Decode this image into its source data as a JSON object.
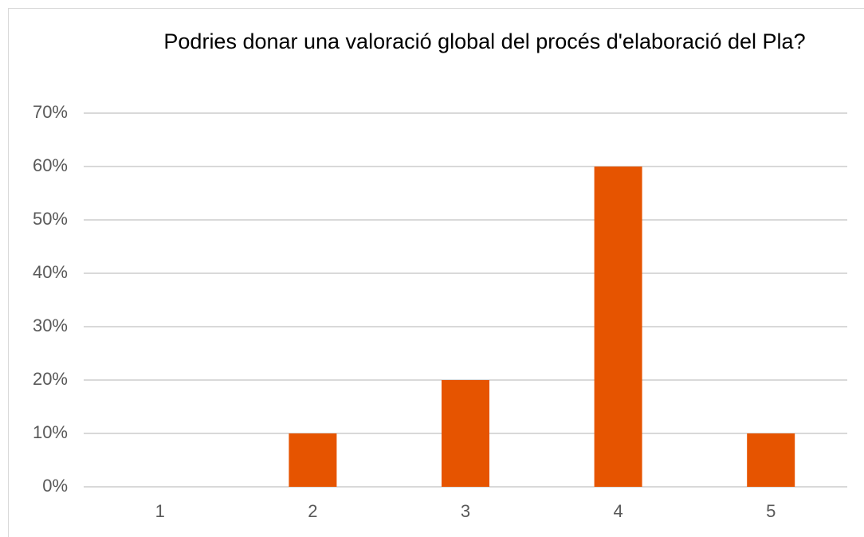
{
  "chart_data": {
    "type": "bar",
    "title": "Podries donar una valoració global del procés d'elaboració del Pla?",
    "categories": [
      "1",
      "2",
      "3",
      "4",
      "5"
    ],
    "values": [
      0,
      10,
      20,
      60,
      10
    ],
    "color": "#e65400",
    "ylim": [
      0,
      70
    ],
    "yticks": [
      {
        "value": 0,
        "label": "0%"
      },
      {
        "value": 10,
        "label": "10%"
      },
      {
        "value": 20,
        "label": "20%"
      },
      {
        "value": 30,
        "label": "30%"
      },
      {
        "value": 40,
        "label": "40%"
      },
      {
        "value": 50,
        "label": "50%"
      },
      {
        "value": 60,
        "label": "60%"
      },
      {
        "value": 70,
        "label": "70%"
      }
    ],
    "grid": true
  }
}
